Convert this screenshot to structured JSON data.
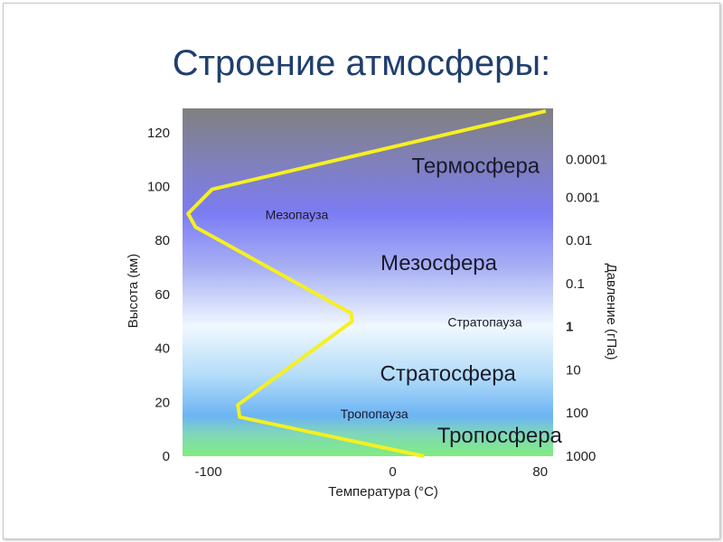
{
  "slide": {
    "title": "Строение атмосферы:"
  },
  "chart_data": {
    "type": "line",
    "title": "",
    "xlabel": "Температура (°C)",
    "ylabel": "Высота (км)",
    "y2label": "Давление (гПа)",
    "xlim": [
      -114,
      87
    ],
    "ylim": [
      0,
      129
    ],
    "xticks": [
      {
        "value": -100,
        "label": "-100"
      },
      {
        "value": 0,
        "label": "0"
      },
      {
        "value": 80,
        "label": "80"
      }
    ],
    "yticks": [
      {
        "value": 0,
        "label": "0"
      },
      {
        "value": 20,
        "label": "20"
      },
      {
        "value": 40,
        "label": "40"
      },
      {
        "value": 60,
        "label": "60"
      },
      {
        "value": 80,
        "label": "80"
      },
      {
        "value": 100,
        "label": "100"
      },
      {
        "value": 120,
        "label": "120"
      }
    ],
    "y2ticks": [
      {
        "altitude": 110,
        "label": "0.0001"
      },
      {
        "altitude": 96,
        "label": "0.001"
      },
      {
        "altitude": 80,
        "label": "0.01"
      },
      {
        "altitude": 64,
        "label": "0.1"
      },
      {
        "altitude": 48,
        "label": "1"
      },
      {
        "altitude": 32,
        "label": "10"
      },
      {
        "altitude": 16,
        "label": "100"
      },
      {
        "altitude": 0,
        "label": "1000"
      }
    ],
    "series": [
      {
        "color": "#f5f020",
        "points": [
          [
            17,
            0
          ],
          [
            -83,
            14.5
          ],
          [
            -84,
            19
          ],
          [
            -22,
            50
          ],
          [
            -22.5,
            53
          ],
          [
            -107,
            85
          ],
          [
            -111,
            90
          ],
          [
            -98,
            99
          ],
          [
            83,
            128
          ]
        ]
      }
    ],
    "annotations": [
      {
        "text": "Термосфера",
        "x": 45,
        "y": 105,
        "size": "large"
      },
      {
        "text": "Мезопауза",
        "x": -52,
        "y": 88,
        "size": "small"
      },
      {
        "text": "Мезосфера",
        "x": 25,
        "y": 69,
        "size": "large"
      },
      {
        "text": "Стратопауза",
        "x": 50,
        "y": 48,
        "size": "small"
      },
      {
        "text": "Стратосфера",
        "x": 30,
        "y": 28,
        "size": "large"
      },
      {
        "text": "Тропопауза",
        "x": -10,
        "y": 14,
        "size": "small"
      },
      {
        "text": "Тропосфера",
        "x": 58,
        "y": 5,
        "size": "large"
      }
    ],
    "background_gradient": [
      {
        "altitude": 129,
        "color": "#808080"
      },
      {
        "altitude": 110,
        "color": "#8080b8"
      },
      {
        "altitude": 90,
        "color": "#7c7cf4"
      },
      {
        "altitude": 70,
        "color": "#a8b0f4"
      },
      {
        "altitude": 48,
        "color": "#f0f8ff"
      },
      {
        "altitude": 30,
        "color": "#b4dcf8"
      },
      {
        "altitude": 15,
        "color": "#6cb4f4"
      },
      {
        "altitude": 8,
        "color": "#80d8b8"
      },
      {
        "altitude": 0,
        "color": "#80ec80"
      }
    ],
    "grid": false
  }
}
